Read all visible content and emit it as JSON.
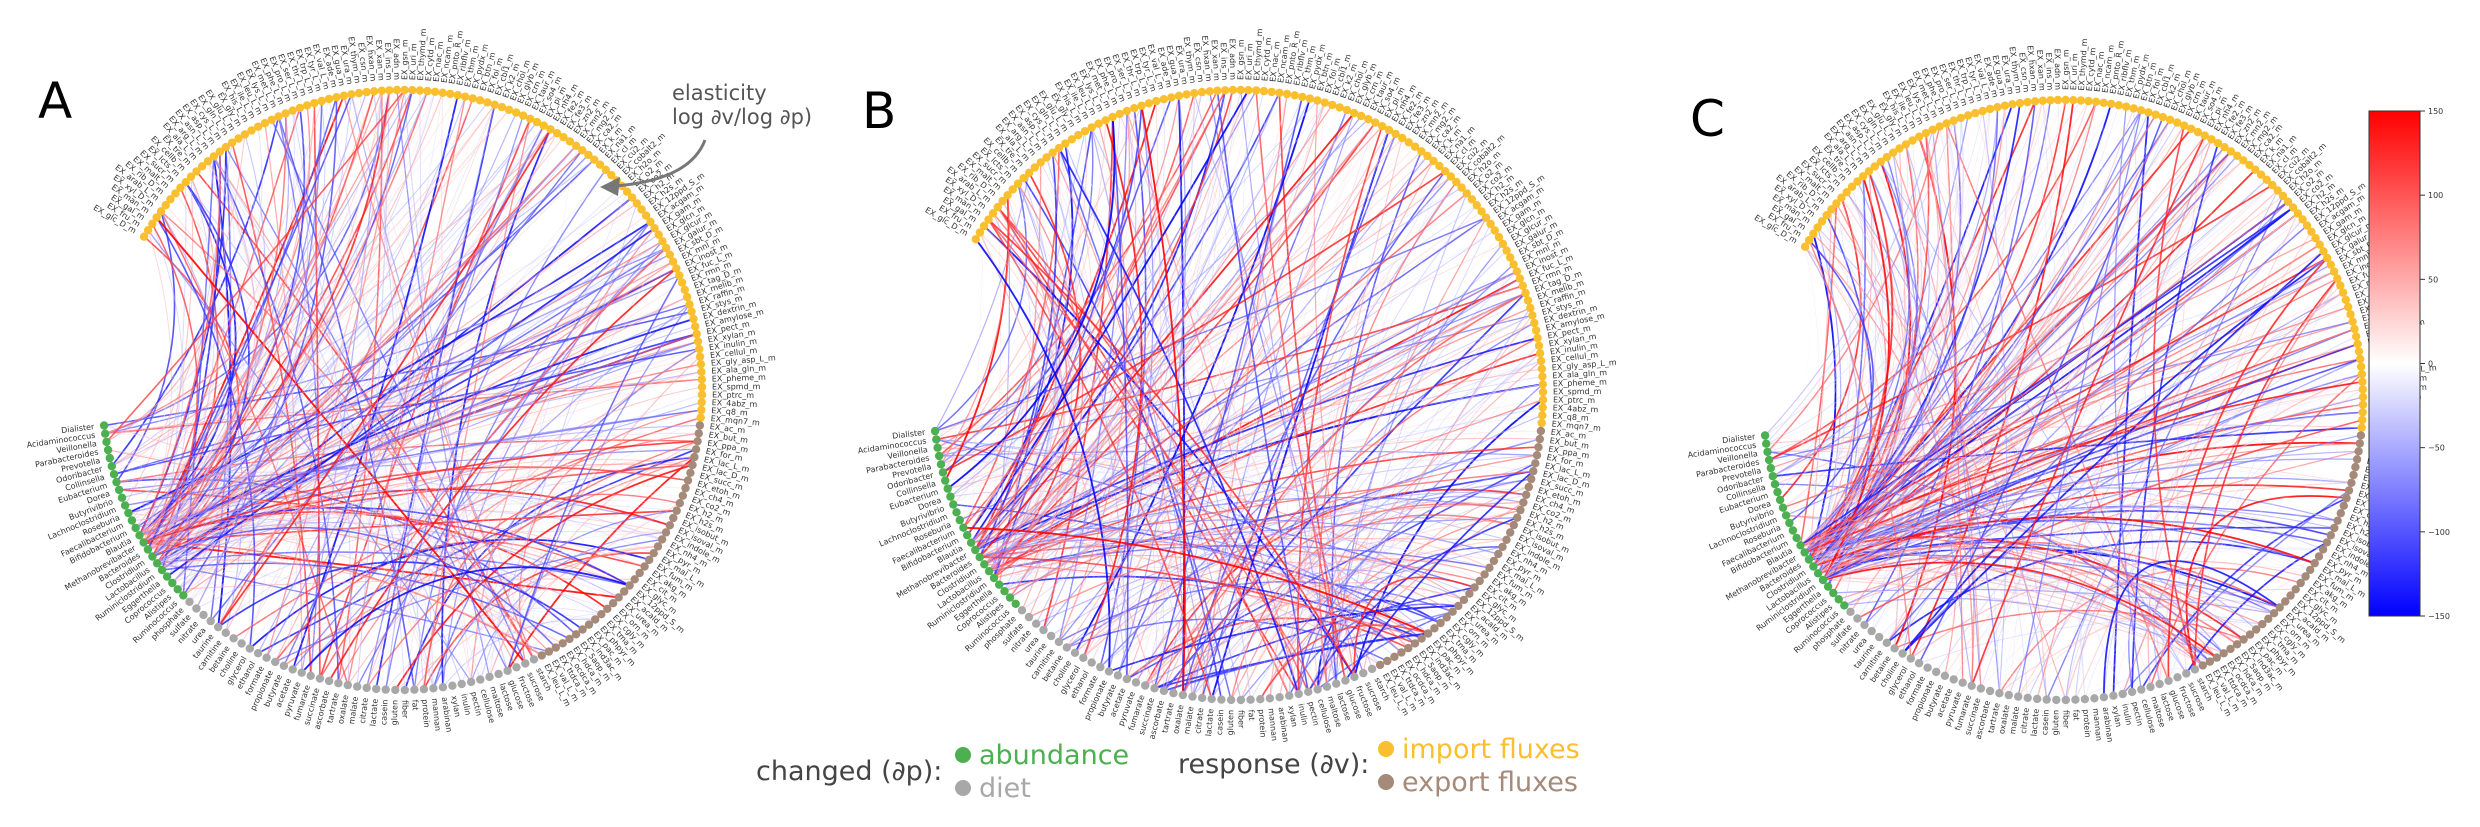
{
  "panels": [
    {
      "letter": "A",
      "annotation": {
        "line1": "elasticity",
        "line2": "log ∂v/log ∂p)"
      }
    },
    {
      "letter": "B"
    },
    {
      "letter": "C"
    }
  ],
  "node_labels": {
    "abundance": [
      "Ruminococcus",
      "Alistipes",
      "Coprococcus",
      "Eggerthella",
      "Ruminiclostridium",
      "Lactobacillus",
      "Clostridium",
      "Bacteroides",
      "Methanobrevibacter",
      "Blautia",
      "Bifidobacterium",
      "Faecalibacterium",
      "Roseburia",
      "Lachnoclostridium",
      "Butyrivibrio",
      "Dorea",
      "Eubacterium",
      "Collinsella",
      "Odoribacter",
      "Prevotella",
      "Parabacteroides",
      "Veillonella",
      "Acidaminococcus",
      "Dialister"
    ],
    "diet": [
      "starch",
      "sucrose",
      "fructose",
      "glucose",
      "lactose",
      "maltose",
      "cellulose",
      "pectin",
      "inulin",
      "xylan",
      "arabinan",
      "mannan",
      "protein",
      "fat",
      "fiber",
      "gluten",
      "casein",
      "lactate",
      "citrate",
      "malate",
      "oxalate",
      "tartrate",
      "ascorbate",
      "succinate",
      "fumarate",
      "pyruvate",
      "acetate",
      "butyrate",
      "propionate",
      "formate",
      "ethanol",
      "glycerol",
      "choline",
      "betaine",
      "carnitine",
      "taurine",
      "urea",
      "nitrate",
      "sulfate",
      "phosphate"
    ],
    "import": [
      "EX_glc_D_m",
      "EX_fru_m",
      "EX_gal_m",
      "EX_man_m",
      "EX_xyl_D_m",
      "EX_arab_L_m",
      "EX_rib_D_m",
      "EX_malt_m",
      "EX_sucr_m",
      "EX_lcts_m",
      "EX_cellb_m",
      "EX_tre_m",
      "EX_ala_L_m",
      "EX_arg_L_m",
      "EX_asn_L_m",
      "EX_asp_L_m",
      "EX_cys_L_m",
      "EX_gln_L_m",
      "EX_glu_L_m",
      "EX_gly_m",
      "EX_his_L_m",
      "EX_ile_L_m",
      "EX_leu_L_m",
      "EX_lys_L_m",
      "EX_met_L_m",
      "EX_phe_L_m",
      "EX_pro_L_m",
      "EX_ser_L_m",
      "EX_thr_L_m",
      "EX_trp_L_m",
      "EX_tyr_L_m",
      "EX_val_L_m",
      "EX_ade_m",
      "EX_gua_m",
      "EX_ura_m",
      "EX_thym_m",
      "EX_csn_m",
      "EX_hxan_m",
      "EX_xan_m",
      "EX_ins_m",
      "EX_adn_m",
      "EX_gsn_m",
      "EX_uri_m",
      "EX_thymd_m",
      "EX_cytd_m",
      "EX_nac_m",
      "EX_ncam_m",
      "EX_pnto_R_m",
      "EX_ribflv_m",
      "EX_thm_m",
      "EX_pydx_m",
      "EX_btn_m",
      "EX_fol_m",
      "EX_cbl1_m",
      "EX_k2_m",
      "EX_chol_m",
      "EX_glyb_m",
      "EX_crn_m",
      "EX_taur_m",
      "EX_so4_m",
      "EX_pi_m",
      "EX_nh4_m",
      "EX_fe2_m",
      "EX_fe3_m",
      "EX_zn2_m",
      "EX_mn2_m",
      "EX_mg2_m",
      "EX_ca2_m",
      "EX_k_m",
      "EX_na1_m",
      "EX_cl_m",
      "EX_cu2_m",
      "EX_cobalt2_m",
      "EX_h2o_m",
      "EX_o2_m",
      "EX_co2_m",
      "EX_h2_m",
      "EX_h2s_m",
      "EX_12ppd_S_m",
      "EX_acgam_m",
      "EX_gam_m",
      "EX_glcn_m",
      "EX_glcur_m",
      "EX_galur_m",
      "EX_sbt_D_m",
      "EX_mnl_m",
      "EX_inost_m",
      "EX_fuc_L_m",
      "EX_rmn_m",
      "EX_tag_D_m",
      "EX_melib_m",
      "EX_raffin_m",
      "EX_stys_m",
      "EX_dextrin_m",
      "EX_amylose_m",
      "EX_pect_m",
      "EX_xylan_m",
      "EX_inulin_m",
      "EX_cellul_m",
      "EX_gly_asp_L_m",
      "EX_ala_gln_m",
      "EX_pheme_m",
      "EX_spmd_m",
      "EX_ptrc_m",
      "EX_4abz_m",
      "EX_q8_m",
      "EX_mqn7_m"
    ],
    "export": [
      "EX_ac_m",
      "EX_but_m",
      "EX_ppa_m",
      "EX_for_m",
      "EX_lac_L_m",
      "EX_lac_D_m",
      "EX_succ_m",
      "EX_etoh_m",
      "EX_ch4_m",
      "EX_co2_m",
      "EX_h2_m",
      "EX_h2s_m",
      "EX_isobut_m",
      "EX_isoval_m",
      "EX_indole_m",
      "EX_nh4_m",
      "EX_pyr_m",
      "EX_mal_L_m",
      "EX_fum_m",
      "EX_akg_m",
      "EX_cit_m",
      "EX_glyc_m",
      "EX_12ppd_S_m",
      "EX_acald_m",
      "EX_urea_m",
      "EX_orn_m",
      "EX_cgly_m",
      "EX_tma_m",
      "EX_phpyr_m",
      "EX_pac_m",
      "EX_ind3ac_m",
      "EX_5aop_m",
      "EX_hdca_m",
      "EX_ocdca_m",
      "EX_ttdca_m",
      "EX_val_L_m",
      "EX_leu_L_m"
    ]
  },
  "colorbar": {
    "ticks": [
      "150",
      "100",
      "50",
      "0",
      "−50",
      "−100",
      "−150"
    ],
    "min": -150,
    "max": 150,
    "colors": {
      "max": "#ff0000",
      "mid": "#ffffff",
      "min": "#0000ff"
    }
  },
  "legend": {
    "changed_label": "changed (∂p):",
    "abundance": "abundance",
    "diet": "diet",
    "response_label": "response (∂v):",
    "import": "import fluxes",
    "export": "export fluxes",
    "colors": {
      "abundance": "#4caf50",
      "diet": "#a8a8a8",
      "import": "#f9bf2e",
      "export": "#a58a7a"
    }
  }
}
